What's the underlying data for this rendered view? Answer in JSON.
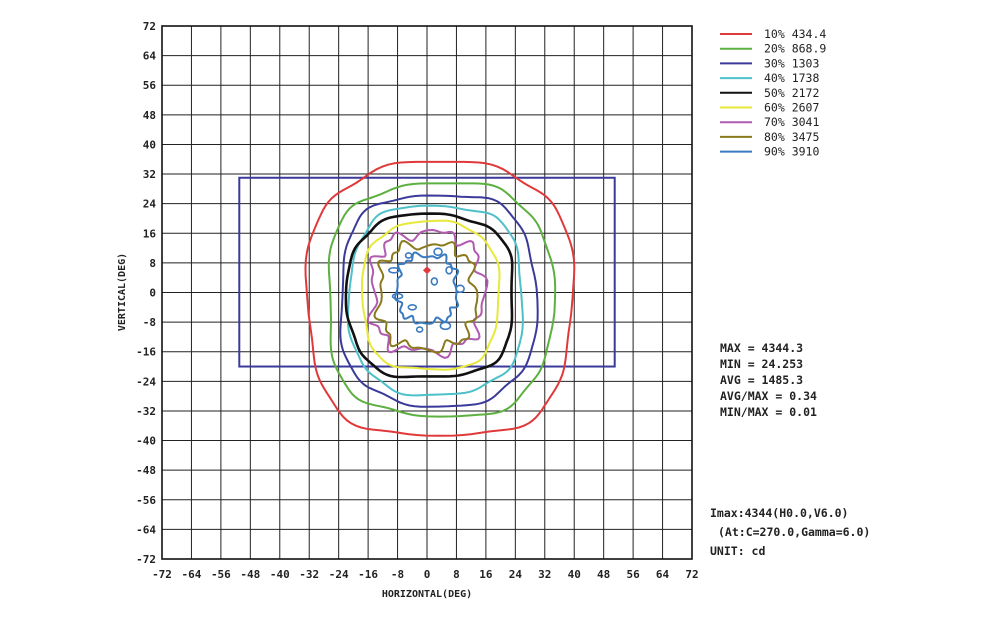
{
  "chart_data": {
    "type": "contour",
    "xlabel": "HORIZONTAL(DEG)",
    "ylabel": "VERTICAL(DEG)",
    "xlim": [
      -72,
      72
    ],
    "ylim": [
      -72,
      72
    ],
    "x_ticks": [
      -72,
      -64,
      -56,
      -48,
      -40,
      -32,
      -24,
      -16,
      -8,
      0,
      8,
      16,
      24,
      32,
      40,
      48,
      56,
      64,
      72
    ],
    "y_ticks": [
      72,
      64,
      56,
      48,
      40,
      32,
      24,
      16,
      8,
      0,
      -8,
      -16,
      -24,
      -32,
      -40,
      -48,
      -56,
      -64,
      -72
    ],
    "x_tick_labels": [
      "-72",
      "-64",
      "-56",
      "-48",
      "-40",
      "-32",
      "-24",
      "-16",
      "-8",
      "0",
      "8",
      "16",
      "24",
      "32",
      "40",
      "48",
      "56",
      "64",
      "72"
    ],
    "y_tick_labels": [
      "72",
      "64",
      "56",
      "48",
      "40",
      "32",
      "24",
      "16",
      "8",
      "0",
      "-8",
      "-16",
      "-24",
      "-32",
      "-40",
      "-48",
      "-56",
      "-64",
      "-72"
    ],
    "grid": true,
    "legend_position": "top-right",
    "field_rectangle": {
      "x": [
        -51,
        51
      ],
      "y": [
        -20,
        31
      ],
      "color": "#3a3a9a"
    },
    "max_marker": {
      "x": 0,
      "y": 6
    },
    "series": [
      {
        "name": "10% 434.4",
        "color": "#e0393b",
        "center": [
          3.5,
          -2
        ],
        "rx": 36,
        "ry": 37
      },
      {
        "name": "20% 868.9",
        "color": "#5cb040",
        "center": [
          3.5,
          -2
        ],
        "rx": 30.5,
        "ry": 31.5
      },
      {
        "name": "30% 1303",
        "color": "#3a3a9a",
        "center": [
          3,
          -2
        ],
        "rx": 26.5,
        "ry": 28.5
      },
      {
        "name": "40% 1738",
        "color": "#4ec0c8",
        "center": [
          2.5,
          -2
        ],
        "rx": 23.5,
        "ry": 25.5
      },
      {
        "name": "50% 2172",
        "color": "#111111",
        "center": [
          1,
          -1
        ],
        "rx": 22.5,
        "ry": 22
      },
      {
        "name": "60% 2607",
        "color": "#e8e83a",
        "center": [
          1,
          -1
        ],
        "rx": 18.5,
        "ry": 20
      },
      {
        "name": "70% 3041",
        "color": "#b05ab0",
        "center": [
          0,
          0
        ],
        "rx": 15,
        "ry": 16
      },
      {
        "name": "80% 3475",
        "color": "#8a7a1e",
        "center": [
          0,
          -1
        ],
        "rx": 13,
        "ry": 14
      },
      {
        "name": "90% 3910",
        "color": "#3a7ac0",
        "center": [
          0,
          1
        ],
        "rx": 8,
        "ry": 9
      }
    ],
    "stats": [
      "MAX = 4344.3",
      "MIN = 24.253",
      "AVG = 1485.3",
      "AVG/MAX = 0.34",
      "MIN/MAX = 0.01"
    ],
    "imax_line1": "Imax:4344(H0.0,V6.0)",
    "imax_line2": "(At:C=270.0,Gamma=6.0)",
    "unit": "UNIT: cd"
  }
}
